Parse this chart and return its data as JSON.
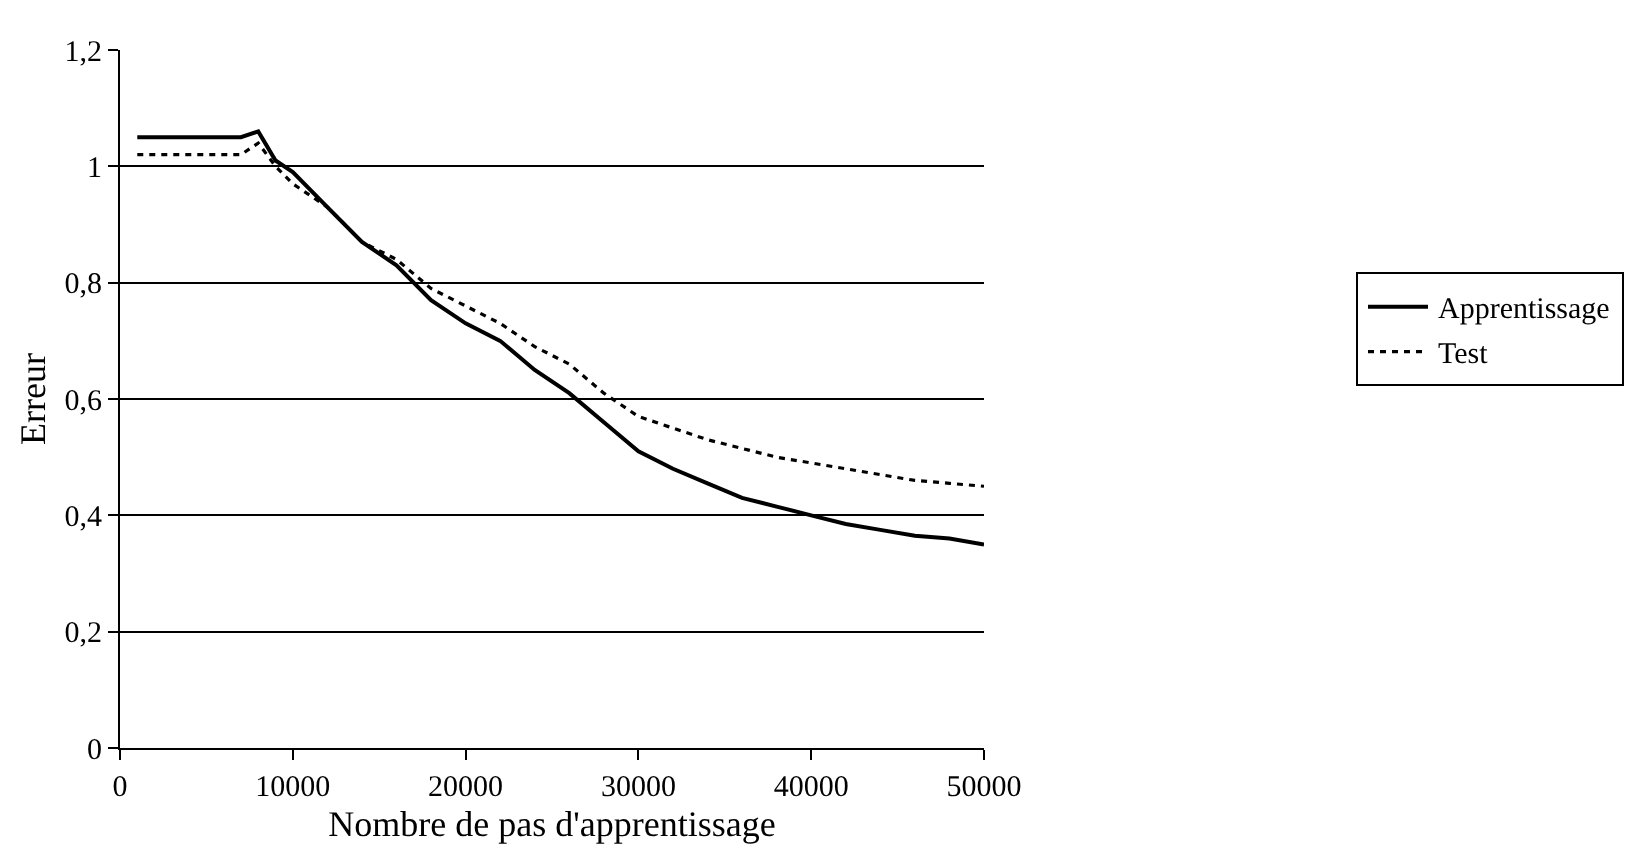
{
  "chart_data": {
    "type": "line",
    "xlabel": "Nombre de pas d'apprentissage",
    "ylabel": "Erreur",
    "xlim": [
      0,
      50000
    ],
    "xticks": [
      0,
      10000,
      20000,
      30000,
      40000,
      50000
    ],
    "ylim": [
      0,
      1.2
    ],
    "yticks": [
      0,
      {
        "value": 0.2,
        "label": "0,2"
      },
      {
        "value": 0.4,
        "label": "0,4"
      },
      {
        "value": 0.6,
        "label": "0,6"
      },
      {
        "value": 0.8,
        "label": "0,8"
      },
      1,
      {
        "value": 1.2,
        "label": "1,2"
      }
    ],
    "grid": "y",
    "legend": "right",
    "marker": "none",
    "series": [
      {
        "name": "Apprentissage",
        "color": "#000000",
        "line_style": "solid",
        "x": [
          1000,
          4000,
          7000,
          8000,
          9000,
          10000,
          12000,
          14000,
          16000,
          18000,
          20000,
          22000,
          24000,
          26000,
          28000,
          30000,
          32000,
          34000,
          36000,
          38000,
          40000,
          42000,
          44000,
          46000,
          48000,
          50000
        ],
        "values": [
          1.05,
          1.05,
          1.05,
          1.06,
          1.01,
          0.99,
          0.93,
          0.87,
          0.83,
          0.77,
          0.73,
          0.7,
          0.65,
          0.61,
          0.56,
          0.51,
          0.48,
          0.455,
          0.43,
          0.415,
          0.4,
          0.385,
          0.375,
          0.365,
          0.36,
          0.35
        ]
      },
      {
        "name": "Test",
        "color": "#000000",
        "line_style": "dotted",
        "x": [
          1000,
          4000,
          7000,
          8000,
          9000,
          10000,
          12000,
          14000,
          16000,
          18000,
          20000,
          22000,
          24000,
          26000,
          28000,
          30000,
          32000,
          34000,
          36000,
          38000,
          40000,
          42000,
          44000,
          46000,
          48000,
          50000
        ],
        "values": [
          1.02,
          1.02,
          1.02,
          1.04,
          1.0,
          0.97,
          0.93,
          0.87,
          0.84,
          0.79,
          0.76,
          0.73,
          0.69,
          0.66,
          0.61,
          0.57,
          0.55,
          0.53,
          0.515,
          0.5,
          0.49,
          0.48,
          0.47,
          0.46,
          0.455,
          0.45
        ]
      }
    ]
  }
}
